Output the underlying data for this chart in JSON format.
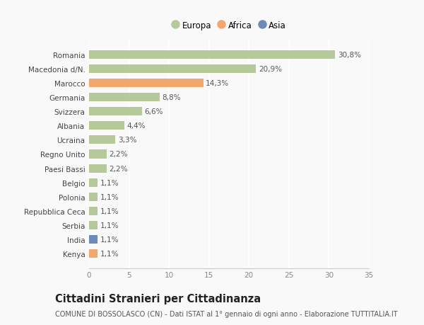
{
  "categories": [
    "Romania",
    "Macedonia d/N.",
    "Marocco",
    "Germania",
    "Svizzera",
    "Albania",
    "Ucraina",
    "Regno Unito",
    "Paesi Bassi",
    "Belgio",
    "Polonia",
    "Repubblica Ceca",
    "Serbia",
    "India",
    "Kenya"
  ],
  "values": [
    30.8,
    20.9,
    14.3,
    8.8,
    6.6,
    4.4,
    3.3,
    2.2,
    2.2,
    1.1,
    1.1,
    1.1,
    1.1,
    1.1,
    1.1
  ],
  "labels": [
    "30,8%",
    "20,9%",
    "14,3%",
    "8,8%",
    "6,6%",
    "4,4%",
    "3,3%",
    "2,2%",
    "2,2%",
    "1,1%",
    "1,1%",
    "1,1%",
    "1,1%",
    "1,1%",
    "1,1%"
  ],
  "continent": [
    "Europa",
    "Europa",
    "Africa",
    "Europa",
    "Europa",
    "Europa",
    "Europa",
    "Europa",
    "Europa",
    "Europa",
    "Europa",
    "Europa",
    "Europa",
    "Asia",
    "Africa"
  ],
  "colors": {
    "Europa": "#b5c99a",
    "Africa": "#f4a76c",
    "Asia": "#6b8cba"
  },
  "legend_order": [
    "Europa",
    "Africa",
    "Asia"
  ],
  "legend_colors": {
    "Europa": "#b5c99a",
    "Africa": "#f4a76c",
    "Asia": "#6b8cba"
  },
  "xlim": [
    0,
    35
  ],
  "xticks": [
    0,
    5,
    10,
    15,
    20,
    25,
    30,
    35
  ],
  "title": "Cittadini Stranieri per Cittadinanza",
  "subtitle": "COMUNE DI BOSSOLASCO (CN) - Dati ISTAT al 1° gennaio di ogni anno - Elaborazione TUTTITALIA.IT",
  "background_color": "#f9f9f9",
  "grid_color": "#ffffff",
  "bar_height": 0.6,
  "label_fontsize": 7.5,
  "tick_fontsize": 7.5,
  "title_fontsize": 10.5,
  "subtitle_fontsize": 7.0
}
